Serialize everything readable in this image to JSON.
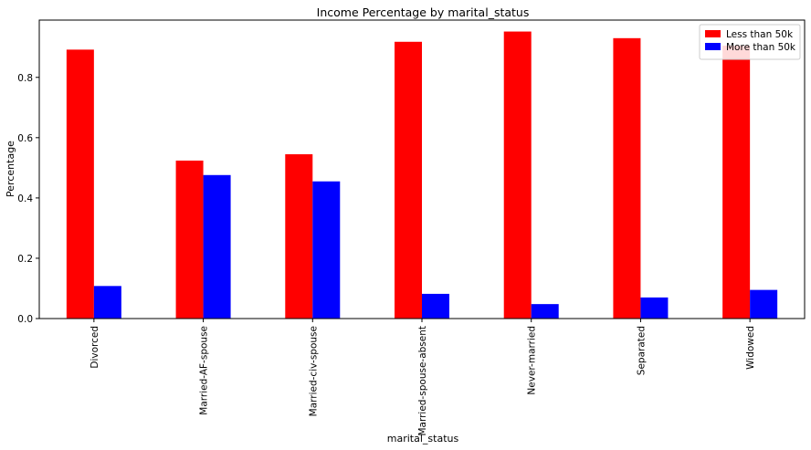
{
  "chart_data": {
    "type": "bar",
    "title": "Income Percentage by marital_status",
    "xlabel": "marital_status",
    "ylabel": "Percentage",
    "categories": [
      "Divorced",
      "Married-AF-spouse",
      "Married-civ-spouse",
      "Married-spouse-absent",
      "Never-married",
      "Separated",
      "Widowed"
    ],
    "series": [
      {
        "name": "Less than 50k",
        "color": "#ff0000",
        "values": [
          0.892,
          0.524,
          0.545,
          0.918,
          0.952,
          0.93,
          0.905
        ]
      },
      {
        "name": "More than 50k",
        "color": "#0000ff",
        "values": [
          0.108,
          0.476,
          0.455,
          0.082,
          0.048,
          0.07,
          0.095
        ]
      }
    ],
    "ylim": [
      0,
      0.99
    ],
    "yticks": [
      0.0,
      0.2,
      0.4,
      0.6,
      0.8
    ],
    "ytick_labels": [
      "0.0",
      "0.2",
      "0.4",
      "0.6",
      "0.8"
    ],
    "grid": false,
    "legend_position": "top-right"
  }
}
